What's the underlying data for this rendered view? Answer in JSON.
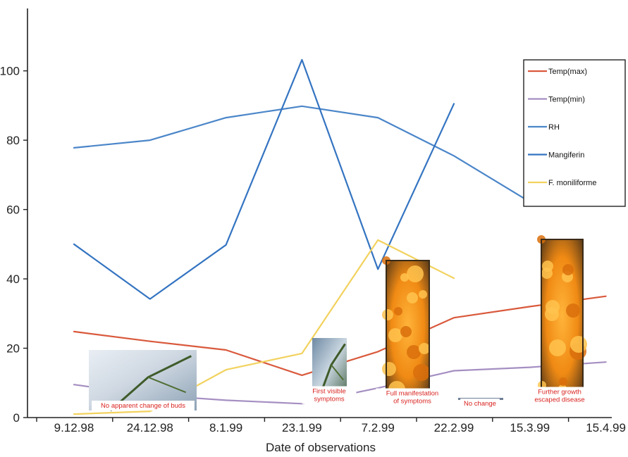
{
  "chart_data": {
    "type": "line",
    "title": "",
    "xlabel": "Date of observations",
    "ylabel": "",
    "categories": [
      "9.12.98",
      "24.12.98",
      "8.1.99",
      "23.1.99",
      "7.2.99",
      "22.2.99",
      "15.3.99",
      "15.4.99"
    ],
    "yticks": [
      0,
      20,
      40,
      60,
      80,
      100
    ],
    "ylim": [
      0,
      118
    ],
    "grid": false,
    "legend_position": "right",
    "series": [
      {
        "name": "Temp(max)",
        "color": "#d9593c",
        "values": [
          24.8,
          22,
          19.5,
          12.2,
          19,
          28.8,
          32,
          35
        ]
      },
      {
        "name": "Temp(min)",
        "color": "#a58fc2",
        "values": [
          9.5,
          6.5,
          5,
          4,
          8.5,
          13.5,
          14.5,
          16
        ]
      },
      {
        "name": "RH",
        "color": "#4b86c9",
        "values": [
          77.8,
          80,
          86.5,
          89.8,
          86.5,
          75.5,
          62.2,
          63.5
        ]
      },
      {
        "name": "Mangiferin",
        "color": "#3474c1",
        "values": [
          50,
          34.2,
          49.8,
          103.2,
          42.8,
          90.5,
          null,
          null
        ]
      },
      {
        "name": "F. moniliforme",
        "color": "#f2d25f",
        "values": [
          1,
          1.8,
          13.8,
          18.5,
          51.2,
          40.2,
          null,
          null
        ]
      }
    ],
    "annotations": [
      {
        "caption": "No apparent change of buds",
        "category": "24.12.98"
      },
      {
        "caption": "First visible symptoms",
        "category": "23.1.99"
      },
      {
        "caption": "Full manifestation of symptoms",
        "category": "22.2.99"
      },
      {
        "caption": "No change",
        "category": "15.3.99"
      },
      {
        "caption": "Further growth escaped disease",
        "category": "15.4.99"
      }
    ]
  }
}
